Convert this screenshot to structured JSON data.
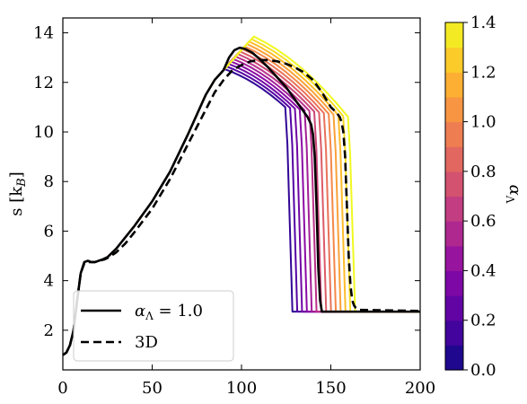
{
  "chart_data": {
    "type": "line",
    "xlabel": "",
    "ylabel": "s [k",
    "ylabel_sub": "B",
    "ylabel_close": "]",
    "xlim": [
      0,
      200
    ],
    "ylim": [
      0.4,
      14.6
    ],
    "xticks": [
      0,
      50,
      100,
      150,
      200
    ],
    "yticks": [
      2,
      4,
      6,
      8,
      10,
      12,
      14
    ],
    "grid": false,
    "colorbar": {
      "label_symbol": "α",
      "label_sub": "Λ",
      "range": [
        0.0,
        1.4
      ],
      "ticks": [
        "0.0",
        "0.2",
        "0.4",
        "0.6",
        "0.8",
        "1.0",
        "1.2",
        "1.4"
      ],
      "colormap": "plasma",
      "levels": 14
    },
    "legend": {
      "placement": "lower-left",
      "entries": [
        {
          "label_symbol": "α",
          "label_sub": "Λ",
          "label_rest": " = 1.0",
          "style": "solid",
          "color": "#000000"
        },
        {
          "label_plain": "3D",
          "style": "dashed",
          "color": "#000000"
        }
      ]
    },
    "family": {
      "alphas": [
        0.1,
        0.2,
        0.3,
        0.4,
        0.5,
        0.6,
        0.7,
        0.8,
        0.9,
        1.0,
        1.1,
        1.2,
        1.3,
        1.4
      ],
      "common_x": [
        0,
        2,
        4,
        6,
        8,
        10,
        12,
        14,
        16,
        18,
        20,
        22,
        25,
        30,
        40,
        50,
        60,
        70,
        75,
        80,
        85,
        90
      ],
      "common_y": [
        1.0,
        1.1,
        1.4,
        2.0,
        3.2,
        4.3,
        4.75,
        4.8,
        4.75,
        4.75,
        4.8,
        4.85,
        4.95,
        5.3,
        6.2,
        7.2,
        8.4,
        9.9,
        10.7,
        11.5,
        12.1,
        12.5
      ],
      "peak_x_base": 90,
      "peak_x_step": 1.3,
      "peak_y_base": 12.55,
      "peak_y_step": 0.1,
      "end_x_base": 124.5,
      "end_x_step": 2.7,
      "end_y_base": 11.0,
      "end_y_step": -0.03,
      "collapse_dx": 4,
      "floor_y": 2.75,
      "x_max": 200
    },
    "series": [
      {
        "name": "α_Λ = 1.0",
        "style": "solid",
        "color": "#000000",
        "x": [
          0,
          2,
          4,
          6,
          8,
          10,
          12,
          14,
          16,
          18,
          20,
          22,
          25,
          30,
          40,
          50,
          60,
          70,
          75,
          80,
          85,
          90,
          93,
          96,
          99,
          102,
          106,
          110,
          115,
          120,
          125,
          130,
          134,
          137,
          139,
          140,
          141,
          142,
          143,
          144,
          145,
          200
        ],
        "y": [
          1.0,
          1.1,
          1.4,
          2.0,
          3.2,
          4.3,
          4.75,
          4.8,
          4.75,
          4.75,
          4.8,
          4.85,
          4.95,
          5.3,
          6.2,
          7.2,
          8.4,
          9.9,
          10.7,
          11.5,
          12.1,
          12.5,
          13.0,
          13.3,
          13.4,
          13.35,
          13.2,
          12.95,
          12.6,
          12.2,
          11.8,
          11.3,
          10.9,
          10.6,
          10.3,
          9.9,
          9.0,
          7.0,
          4.5,
          3.2,
          2.75,
          2.75
        ]
      },
      {
        "name": "3D",
        "style": "dashed",
        "color": "#000000",
        "x": [
          0,
          2,
          4,
          6,
          8,
          10,
          12,
          14,
          16,
          18,
          20,
          23,
          26,
          30,
          35,
          40,
          50,
          60,
          70,
          80,
          85,
          90,
          95,
          100,
          105,
          110,
          115,
          120,
          125,
          130,
          135,
          140,
          145,
          150,
          153,
          155,
          156,
          157,
          158,
          159,
          160,
          161,
          162,
          163,
          164,
          166,
          200
        ],
        "y": [
          1.0,
          1.1,
          1.4,
          2.0,
          3.2,
          4.3,
          4.7,
          4.75,
          4.75,
          4.75,
          4.8,
          4.85,
          4.95,
          5.15,
          5.5,
          5.95,
          6.9,
          8.1,
          9.5,
          10.9,
          11.6,
          12.1,
          12.5,
          12.7,
          12.85,
          12.9,
          12.9,
          12.85,
          12.75,
          12.6,
          12.4,
          12.1,
          11.6,
          11.0,
          10.8,
          10.6,
          10.4,
          10.0,
          9.0,
          7.0,
          5.0,
          3.8,
          3.2,
          3.0,
          2.9,
          2.82,
          2.78
        ]
      }
    ]
  }
}
